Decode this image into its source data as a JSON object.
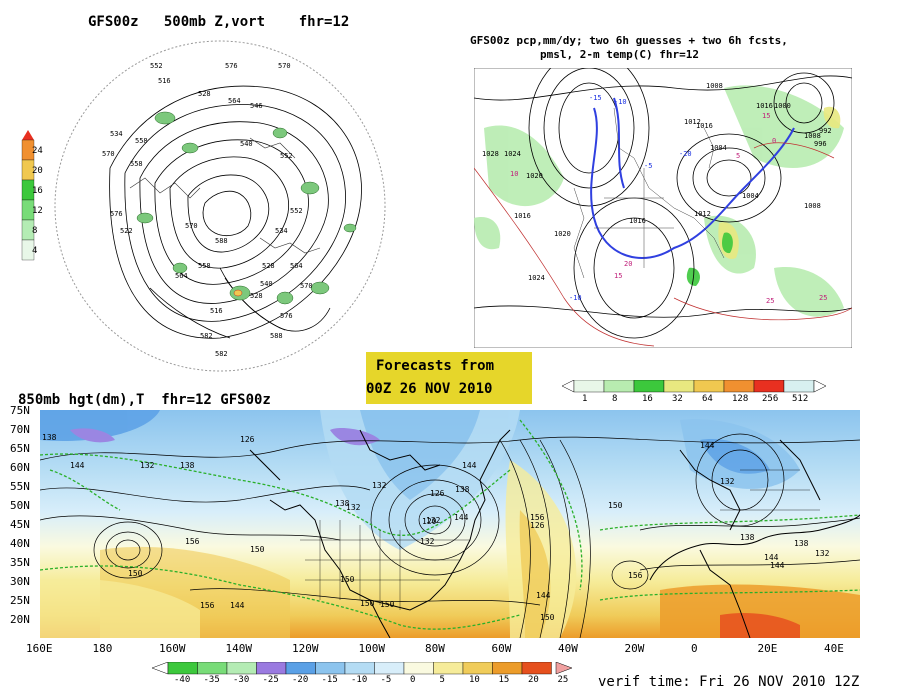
{
  "panels": {
    "top_left": {
      "title": "GFS00z   500mb Z,vort    fhr=12",
      "colorbar_labels": [
        "24",
        "20",
        "16",
        "12",
        "8",
        "4"
      ],
      "contour_labels": [
        "552",
        "576",
        "570",
        "516",
        "528",
        "534",
        "546",
        "564",
        "570",
        "558",
        "540",
        "552",
        "558",
        "576",
        "522",
        "570",
        "558",
        "564",
        "588",
        "564",
        "552",
        "534",
        "528",
        "576",
        "582",
        "588",
        "582",
        "570",
        "540",
        "528",
        "516"
      ]
    },
    "top_right": {
      "title_line1": "GFS00z pcp,mm/dy; two 6h guesses + two 6h fcsts,",
      "title_line2": "pmsl, 2-m temp(C)  fhr=12",
      "colorbar_labels": [
        "1",
        "8",
        "16",
        "32",
        "64",
        "128",
        "256",
        "512"
      ],
      "colorbar_colors": [
        "#e8f7e8",
        "#b8ecb0",
        "#3cc83c",
        "#e8e880",
        "#f0c850",
        "#f09030",
        "#e83020",
        "#d8f0f0"
      ],
      "contour_labels": [
        "1008",
        "1016",
        "1000",
        "1024",
        "1004",
        "1020",
        "1012",
        "1016",
        "1008",
        "992",
        "996",
        "1020",
        "1004",
        "1012",
        "1008",
        "1016",
        "1024",
        "1028",
        "1016"
      ],
      "temp_labels": [
        "-10",
        "-15",
        "-20",
        "-5",
        "10",
        "15",
        "20",
        "25",
        "-10",
        "5",
        "0",
        "25",
        "15"
      ]
    },
    "center_box": {
      "line1": "Forecasts from",
      "line2": "00Z 26 NOV 2010",
      "bg_color": "#e6d62a"
    },
    "bottom": {
      "title": "850mb hgt(dm),T  fhr=12 GFS00z",
      "lat_labels": [
        "75N",
        "70N",
        "65N",
        "60N",
        "55N",
        "50N",
        "45N",
        "40N",
        "35N",
        "30N",
        "25N",
        "20N"
      ],
      "lon_labels": [
        "160E",
        "180",
        "160W",
        "140W",
        "120W",
        "100W",
        "80W",
        "60W",
        "40W",
        "20W",
        "0",
        "20E",
        "40E"
      ],
      "height_labels": [
        "138",
        "126",
        "144",
        "138",
        "132",
        "132",
        "144",
        "138",
        "126",
        "144",
        "132",
        "138",
        "132",
        "132",
        "120",
        "132",
        "144",
        "126",
        "150",
        "156",
        "150",
        "156",
        "150",
        "144",
        "150",
        "156",
        "144",
        "150",
        "156",
        "138",
        "132",
        "144",
        "138",
        "144",
        "150",
        "150"
      ],
      "colorbar_labels": [
        "-40",
        "-35",
        "-30",
        "-25",
        "-20",
        "-15",
        "-10",
        "-5",
        "0",
        "5",
        "10",
        "15",
        "20",
        "25"
      ],
      "colorbar_colors": [
        "#3cc83c",
        "#78dc78",
        "#b4ecb4",
        "#9a7ae0",
        "#5aa0e6",
        "#8cc4ee",
        "#b4dcf4",
        "#d8eefa",
        "#fafae0",
        "#f6ec9a",
        "#f0cc5a",
        "#ec9c2a",
        "#e6501e",
        "#f0a0a0"
      ],
      "verif_time": "verif time: Fri 26 NOV 2010 12Z"
    }
  }
}
